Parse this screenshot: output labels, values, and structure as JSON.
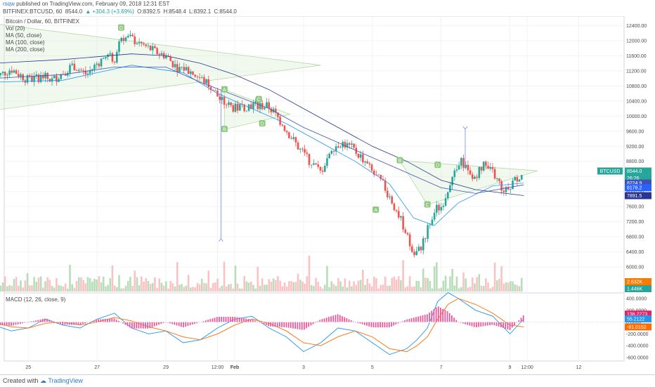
{
  "header": {
    "user": "rsqw",
    "published": "published on TradingView.com, February 09, 2018 12:31 EST",
    "symbol": "BITFINEX:BTCUSD, 60",
    "price": "8544.0",
    "change": "+304.3 (+3.69%)",
    "open": "O:8392.5",
    "high": "H:8548.4",
    "low": "L:8392.1",
    "close": "C:8544.0"
  },
  "legend": {
    "title": "Bitcoin / Dollar, 60, BITFINEX",
    "vol": "Vol (20)",
    "ma50": "MA (50, close)",
    "ma100": "MA (100, close)",
    "ma200": "MA (200, close)"
  },
  "macd_legend": "MACD (12, 26, close, 9)",
  "patterns": [
    {
      "label": "D",
      "x": 27.7,
      "y": 12340
    },
    {
      "label": "A",
      "x": 30.7,
      "y": 10700
    },
    {
      "label": "B",
      "x": 30.7,
      "y": 9650
    },
    {
      "label": "C",
      "x": 31.7,
      "y": 10440
    },
    {
      "label": "D",
      "x": 31.8,
      "y": 9800
    },
    {
      "label": "A",
      "x": 35.1,
      "y": 7510
    },
    {
      "label": "B",
      "x": 35.8,
      "y": 8820
    },
    {
      "label": "C",
      "x": 36.6,
      "y": 7650
    },
    {
      "label": "D",
      "x": 36.9,
      "y": 8700
    }
  ],
  "price_tags": [
    {
      "label": "BTCUSD",
      "value": "8544.0",
      "color": "#26a69a"
    },
    {
      "value": "26:26",
      "color": "#26a69a"
    },
    {
      "value": "8224.9",
      "color": "#3f51b5"
    },
    {
      "value": "8176.2",
      "color": "#2962ff"
    },
    {
      "value": "7891.5",
      "color": "#283593"
    }
  ],
  "volume_tags": [
    {
      "value": "2.632K",
      "color": "#f57c00"
    },
    {
      "value": "1.446K",
      "color": "#26a69a"
    }
  ],
  "macd_tags": [
    {
      "value": "136.2273",
      "color": "#e91e63"
    },
    {
      "value": "55.2122",
      "color": "#2196f3"
    },
    {
      "value": "-81.0152",
      "color": "#ff6d00"
    }
  ],
  "footer": {
    "created": "Created with",
    "brand": "TradingView"
  },
  "chart_data": {
    "type": "line",
    "x_tick_labels": [
      {
        "x": 25,
        "label": "25"
      },
      {
        "x": 27,
        "label": "27"
      },
      {
        "x": 29,
        "label": "29"
      },
      {
        "x": 30.5,
        "label": "12:00"
      },
      {
        "x": 31,
        "label": "Feb"
      },
      {
        "x": 33,
        "label": "3"
      },
      {
        "x": 35,
        "label": "5"
      },
      {
        "x": 37,
        "label": "7"
      },
      {
        "x": 39,
        "label": "9"
      },
      {
        "x": 39.5,
        "label": "12:00"
      },
      {
        "x": 41,
        "label": "12"
      }
    ],
    "price_ylim": [
      5350,
      12650
    ],
    "price_ticks": [
      12400,
      12000,
      11600,
      11200,
      10800,
      10400,
      10000,
      9600,
      9200,
      8800,
      8400,
      8000,
      7600,
      7200,
      6800,
      6400,
      6000
    ],
    "price_close_points": [
      [
        24.0,
        11000
      ],
      [
        24.5,
        11250
      ],
      [
        25.0,
        10950
      ],
      [
        25.4,
        11050
      ],
      [
        25.7,
        10950
      ],
      [
        26.0,
        11150
      ],
      [
        26.3,
        11350
      ],
      [
        26.7,
        11100
      ],
      [
        27.0,
        11400
      ],
      [
        27.3,
        11600
      ],
      [
        27.5,
        11500
      ],
      [
        27.7,
        12100
      ],
      [
        28.0,
        12050
      ],
      [
        28.3,
        11900
      ],
      [
        28.7,
        11700
      ],
      [
        29.0,
        11600
      ],
      [
        29.3,
        11300
      ],
      [
        29.6,
        11250
      ],
      [
        30.0,
        11000
      ],
      [
        30.3,
        10800
      ],
      [
        30.6,
        10400
      ],
      [
        31.0,
        10200
      ],
      [
        31.5,
        10300
      ],
      [
        32.0,
        10250
      ],
      [
        32.3,
        9900
      ],
      [
        32.6,
        9500
      ],
      [
        32.9,
        9100
      ],
      [
        33.2,
        8800
      ],
      [
        33.5,
        8500
      ],
      [
        33.8,
        9150
      ],
      [
        34.1,
        9300
      ],
      [
        34.4,
        9150
      ],
      [
        34.7,
        8900
      ],
      [
        35.0,
        8500
      ],
      [
        35.3,
        8200
      ],
      [
        35.6,
        7700
      ],
      [
        35.9,
        7100
      ],
      [
        36.2,
        6300
      ],
      [
        36.4,
        6500
      ],
      [
        36.6,
        7000
      ],
      [
        36.8,
        7500
      ],
      [
        37.0,
        7600
      ],
      [
        37.3,
        8300
      ],
      [
        37.6,
        8800
      ],
      [
        37.9,
        8300
      ],
      [
        38.2,
        8700
      ],
      [
        38.5,
        8500
      ],
      [
        38.8,
        8050
      ],
      [
        39.1,
        8250
      ],
      [
        39.4,
        8544
      ]
    ],
    "price_range": {
      "start": 24.0,
      "end": 39.4,
      "high": 12400,
      "low": 6000
    },
    "series": [
      {
        "type": "ma",
        "color": "#2196f3",
        "points": [
          [
            24,
            10900
          ],
          [
            26,
            10950
          ],
          [
            28,
            11350
          ],
          [
            29.5,
            11150
          ],
          [
            30.5,
            10600
          ],
          [
            31.5,
            10200
          ],
          [
            32.5,
            9800
          ],
          [
            33.5,
            9300
          ],
          [
            34.5,
            8800
          ],
          [
            35.5,
            8200
          ],
          [
            36.2,
            7300
          ],
          [
            36.8,
            7100
          ],
          [
            37.5,
            7700
          ],
          [
            38.5,
            8150
          ],
          [
            39.4,
            8224.9
          ]
        ]
      },
      {
        "type": "ma",
        "color": "#3f51b5",
        "points": [
          [
            24,
            11000
          ],
          [
            26,
            11100
          ],
          [
            27.5,
            11300
          ],
          [
            29,
            11300
          ],
          [
            30,
            10900
          ],
          [
            31,
            10550
          ],
          [
            32,
            10200
          ],
          [
            33,
            9700
          ],
          [
            34,
            9300
          ],
          [
            35,
            8900
          ],
          [
            36,
            8500
          ],
          [
            37,
            8100
          ],
          [
            38,
            7950
          ],
          [
            39.4,
            8176.2
          ]
        ]
      },
      {
        "type": "ma",
        "color": "#283593",
        "points": [
          [
            24,
            11400
          ],
          [
            26,
            11500
          ],
          [
            28,
            11650
          ],
          [
            29,
            11600
          ],
          [
            30,
            11400
          ],
          [
            31,
            11100
          ],
          [
            32,
            10700
          ],
          [
            33,
            10200
          ],
          [
            34,
            9700
          ],
          [
            35,
            9200
          ],
          [
            36,
            8800
          ],
          [
            37,
            8300
          ],
          [
            38,
            8050
          ],
          [
            39.4,
            7891.5
          ]
        ]
      },
      {
        "type": "macd",
        "color": "#2196f3",
        "points": [
          [
            24,
            -50
          ],
          [
            24.5,
            -150
          ],
          [
            25,
            -100
          ],
          [
            25.5,
            50
          ],
          [
            26,
            -50
          ],
          [
            26.5,
            -100
          ],
          [
            27,
            50
          ],
          [
            27.5,
            150
          ],
          [
            28,
            -100
          ],
          [
            28.5,
            -200
          ],
          [
            29,
            -150
          ],
          [
            29.5,
            -350
          ],
          [
            30,
            -300
          ],
          [
            30.5,
            -100
          ],
          [
            31,
            50
          ],
          [
            31.5,
            100
          ],
          [
            32,
            -100
          ],
          [
            32.5,
            -250
          ],
          [
            33,
            -500
          ],
          [
            33.5,
            -350
          ],
          [
            34,
            -100
          ],
          [
            34.5,
            -150
          ],
          [
            35,
            -350
          ],
          [
            35.5,
            -550
          ],
          [
            36,
            -450
          ],
          [
            36.3,
            -300
          ],
          [
            36.6,
            -100
          ],
          [
            36.9,
            350
          ],
          [
            37.2,
            500
          ],
          [
            37.5,
            400
          ],
          [
            38,
            200
          ],
          [
            38.5,
            100
          ],
          [
            39,
            -200
          ],
          [
            39.4,
            55.2
          ]
        ]
      },
      {
        "type": "macd",
        "color": "#ff6d00",
        "points": [
          [
            24,
            0
          ],
          [
            24.5,
            -80
          ],
          [
            25,
            -100
          ],
          [
            25.5,
            -20
          ],
          [
            26,
            0
          ],
          [
            26.5,
            -50
          ],
          [
            27,
            0
          ],
          [
            27.5,
            80
          ],
          [
            28,
            20
          ],
          [
            28.5,
            -80
          ],
          [
            29,
            -150
          ],
          [
            29.5,
            -250
          ],
          [
            30,
            -300
          ],
          [
            30.5,
            -200
          ],
          [
            31,
            -50
          ],
          [
            31.5,
            50
          ],
          [
            32,
            -20
          ],
          [
            32.5,
            -150
          ],
          [
            33,
            -350
          ],
          [
            33.5,
            -400
          ],
          [
            34,
            -250
          ],
          [
            34.5,
            -150
          ],
          [
            35,
            -250
          ],
          [
            35.5,
            -450
          ],
          [
            36,
            -500
          ],
          [
            36.3,
            -400
          ],
          [
            36.6,
            -250
          ],
          [
            36.9,
            50
          ],
          [
            37.2,
            300
          ],
          [
            37.5,
            400
          ],
          [
            38,
            300
          ],
          [
            38.5,
            150
          ],
          [
            39,
            -50
          ],
          [
            39.4,
            -81.0
          ]
        ]
      }
    ],
    "macd_ylim": [
      -660,
      460
    ],
    "macd_ticks": [
      400,
      200,
      0,
      -200,
      -400,
      -600
    ],
    "volume_ticks": [
      8000
    ]
  },
  "colors": {
    "up": "#26a69a",
    "down": "#ef5350"
  }
}
